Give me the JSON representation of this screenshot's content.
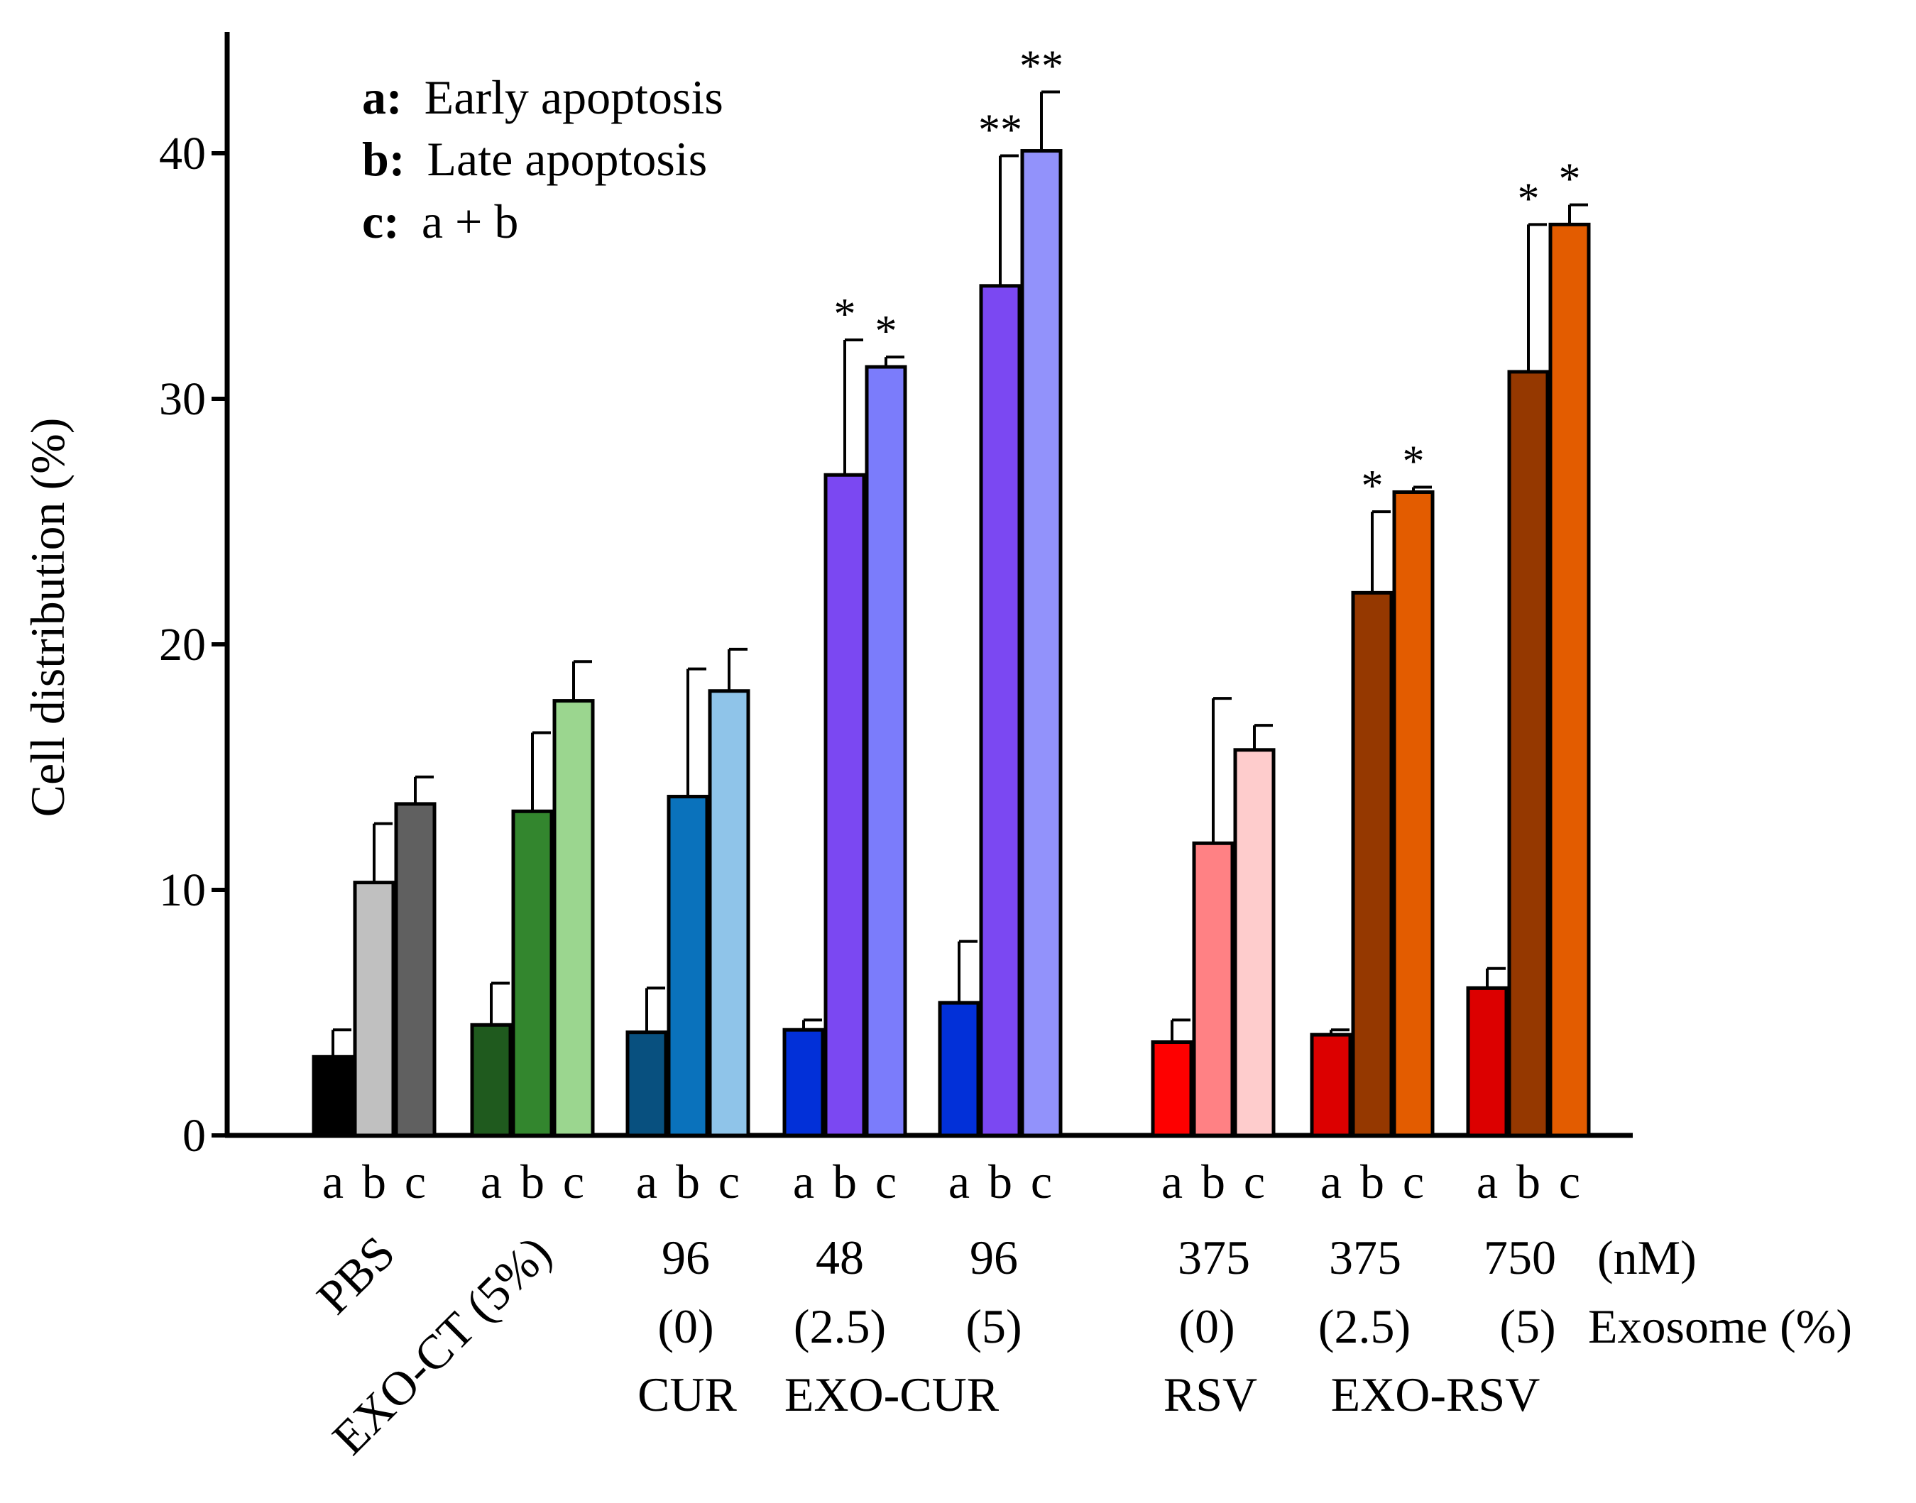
{
  "chart_data": {
    "type": "bar",
    "ylabel": "Cell distribution (%)",
    "ylim": [
      0,
      45
    ],
    "yticks": [
      0,
      10,
      20,
      30,
      40
    ],
    "legend": [
      {
        "key": "a:",
        "text": "Early apoptosis"
      },
      {
        "key": "b:",
        "text": "Late apoptosis"
      },
      {
        "key": "c:",
        "text": "a + b"
      }
    ],
    "bar_letters": [
      "a",
      "b",
      "c"
    ],
    "groups": [
      {
        "name": "PBS",
        "values": [
          3.2,
          10.3,
          13.5
        ],
        "errors": [
          1.1,
          2.4,
          1.1
        ],
        "sig": [
          "",
          "",
          ""
        ],
        "colors": [
          "#000000",
          "#c0c0c0",
          "#606060"
        ]
      },
      {
        "name": "EXO-CT (5%)",
        "values": [
          4.5,
          13.2,
          17.7
        ],
        "errors": [
          1.7,
          3.2,
          1.6
        ],
        "sig": [
          "",
          "",
          ""
        ],
        "colors": [
          "#1f5a1e",
          "#33862e",
          "#9bd68f"
        ]
      },
      {
        "name": "CUR 96 (0)",
        "values": [
          4.2,
          13.8,
          18.1
        ],
        "errors": [
          1.8,
          5.2,
          1.7
        ],
        "sig": [
          "",
          "",
          ""
        ],
        "colors": [
          "#08507f",
          "#0a72bc",
          "#8fc4e9"
        ]
      },
      {
        "name": "EXO-CUR 48 (2.5)",
        "values": [
          4.3,
          26.9,
          31.3
        ],
        "errors": [
          0.4,
          5.5,
          0.4
        ],
        "sig": [
          "",
          "*",
          "*"
        ],
        "colors": [
          "#0230d8",
          "#7b48f2",
          "#7b7cfb"
        ]
      },
      {
        "name": "EXO-CUR 96 (5)",
        "values": [
          5.4,
          34.6,
          40.1
        ],
        "errors": [
          2.5,
          5.3,
          2.4
        ],
        "sig": [
          "",
          "**",
          "**"
        ],
        "colors": [
          "#0230d8",
          "#7b48f2",
          "#9292fb"
        ]
      },
      {
        "name": "RSV 375 (0)",
        "values": [
          3.8,
          11.9,
          15.7
        ],
        "errors": [
          0.9,
          5.9,
          1.0
        ],
        "sig": [
          "",
          "",
          ""
        ],
        "colors": [
          "#fe0000",
          "#ff8184",
          "#fecccc"
        ]
      },
      {
        "name": "EXO-RSV 375 (2.5)",
        "values": [
          4.1,
          22.1,
          26.2
        ],
        "errors": [
          0.2,
          3.3,
          0.2
        ],
        "sig": [
          "",
          "*",
          "*"
        ],
        "colors": [
          "#dc0000",
          "#953800",
          "#e35c00"
        ]
      },
      {
        "name": "EXO-RSV 750 (5)",
        "values": [
          6.0,
          31.1,
          37.1
        ],
        "errors": [
          0.8,
          6.0,
          0.8
        ],
        "sig": [
          "",
          "*",
          "*"
        ],
        "colors": [
          "#dc0000",
          "#953800",
          "#e35c00"
        ]
      }
    ],
    "xaxis_labels": {
      "rotated": [
        "PBS",
        "EXO-CT (5%)"
      ],
      "row1": [
        "96",
        "48",
        "96",
        "375",
        "375",
        "750",
        "(nM)"
      ],
      "row2": [
        "(0)",
        "(2.5)",
        "(5)",
        "(0)",
        "(2.5)",
        "(5)",
        "Exosome (%)"
      ],
      "row3": [
        "CUR",
        "EXO-CUR",
        "RSV",
        "EXO-RSV"
      ]
    }
  }
}
